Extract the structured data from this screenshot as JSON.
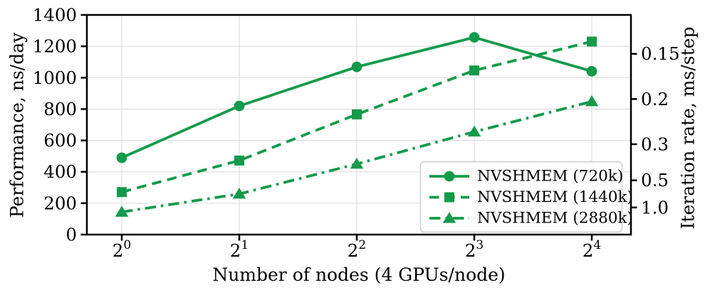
{
  "chart_data": {
    "type": "line",
    "title": "",
    "xlabel": "Number of nodes (4 GPUs/node)",
    "ylabel_left": "Performance, ns/day",
    "ylabel_right": "Iteration rate, ms/step",
    "x_ticks": [
      {
        "base": "2",
        "exp": "0"
      },
      {
        "base": "2",
        "exp": "1"
      },
      {
        "base": "2",
        "exp": "2"
      },
      {
        "base": "2",
        "exp": "3"
      },
      {
        "base": "2",
        "exp": "4"
      }
    ],
    "left_axis": {
      "range": [
        0,
        1400
      ],
      "ticks": [
        0,
        200,
        400,
        600,
        800,
        1000,
        1200,
        1400
      ]
    },
    "right_axis": {
      "ticks": [
        {
          "label": "0.15",
          "perf_equiv": 1152
        },
        {
          "label": "0.2",
          "perf_equiv": 864
        },
        {
          "label": "0.3",
          "perf_equiv": 576
        },
        {
          "label": "0.5",
          "perf_equiv": 345.6
        },
        {
          "label": "1.0",
          "perf_equiv": 172.8
        }
      ]
    },
    "grid": true,
    "legend_position": "lower right",
    "series": [
      {
        "name": "NVSHMEM (720k)",
        "marker": "circle",
        "line_style": "solid",
        "values": [
          490,
          820,
          1069,
          1257,
          1041
        ]
      },
      {
        "name": "NVSHMEM (1440k)",
        "marker": "square",
        "line_style": "dashed",
        "values": [
          271,
          472,
          766,
          1046,
          1230
        ]
      },
      {
        "name": "NVSHMEM (2880k)",
        "marker": "triangle",
        "line_style": "dashdot",
        "values": [
          144,
          259,
          450,
          655,
          848
        ]
      }
    ],
    "colors": {
      "series_green": "#139a4a",
      "grid": "#e0e0e0",
      "axis": "#000000",
      "legend_border": "#cccccc",
      "background": "#ffffff"
    }
  }
}
